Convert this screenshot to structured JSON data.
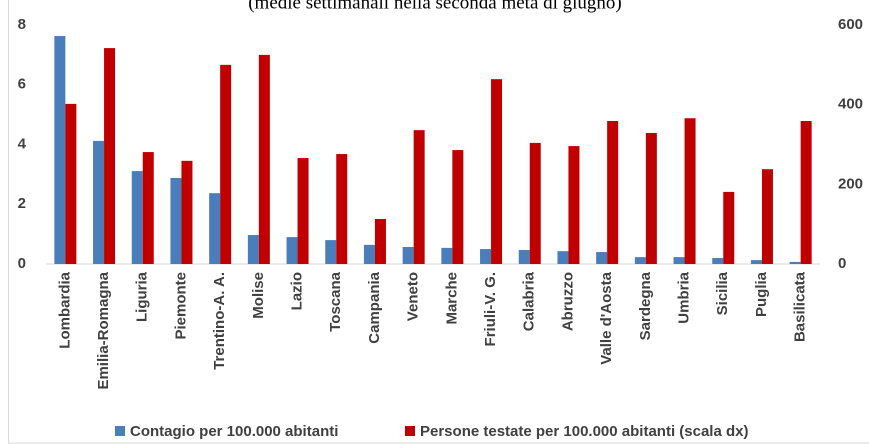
{
  "chart_data": {
    "type": "bar",
    "subtitle": "(medie settimanali nella seconda metà di giugno)",
    "categories": [
      "Lombardia",
      "Emilia-Romagna",
      "Liguria",
      "Piemonte",
      "Trentino-A. A.",
      "Molise",
      "Lazio",
      "Toscana",
      "Campania",
      "Veneto",
      "Marche",
      "Friuli-V. G.",
      "Calabria",
      "Abruzzo",
      "Valle d'Aosta",
      "Sardegna",
      "Umbria",
      "Sicilia",
      "Puglia",
      "Basilicata"
    ],
    "series": [
      {
        "name": "Contagio per 100.000 abitanti",
        "color": "#4a7ebb",
        "values": [
          7.63,
          4.12,
          3.11,
          2.88,
          2.37,
          0.97,
          0.9,
          0.8,
          0.64,
          0.57,
          0.54,
          0.5,
          0.47,
          0.43,
          0.4,
          0.23,
          0.23,
          0.2,
          0.13,
          0.07
        ]
      },
      {
        "name": "Persone testate per 100.000 abitanti (scala dx)",
        "color": "#c00000",
        "axis": "y2",
        "values": [
          402,
          542,
          281,
          259,
          500,
          525,
          266,
          276,
          113,
          336,
          286,
          464,
          304,
          296,
          359,
          329,
          366,
          181,
          238,
          359
        ]
      }
    ],
    "ylim": [
      0,
      8
    ],
    "yticks": [
      0,
      2,
      4,
      6,
      8
    ],
    "y2lim": [
      0,
      600
    ],
    "y2ticks": [
      0,
      200,
      400,
      600
    ],
    "legend": "bottom"
  }
}
